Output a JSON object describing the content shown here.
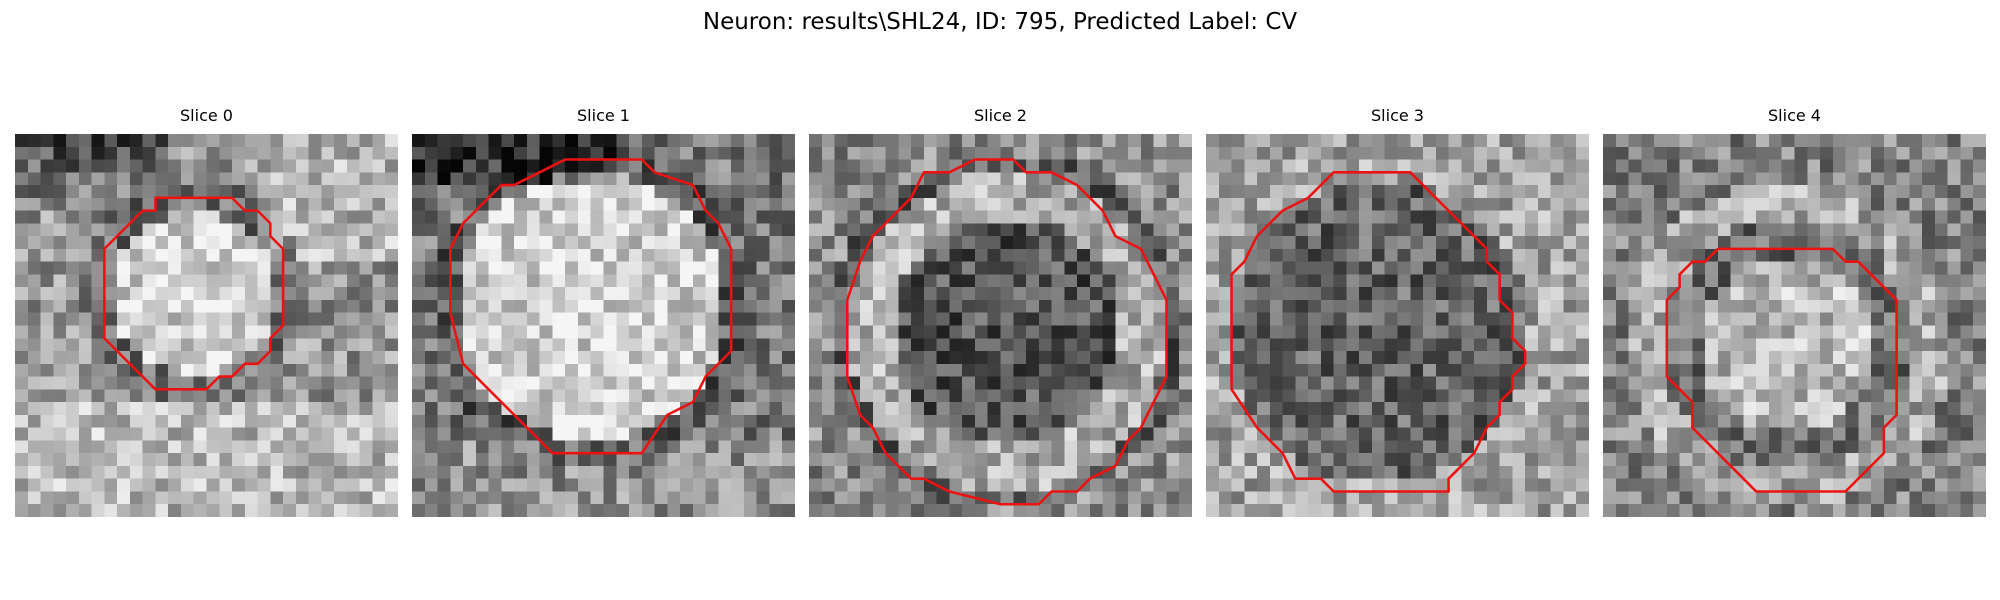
{
  "figure": {
    "title": "Neuron: results\\SHL24, ID: 795, Predicted Label: CV"
  },
  "panels": [
    {
      "title": "Slice 0"
    },
    {
      "title": "Slice 1"
    },
    {
      "title": "Slice 2"
    },
    {
      "title": "Slice 3"
    },
    {
      "title": "Slice 4"
    }
  ],
  "colors": {
    "background": "#ffffff",
    "contour": "#ee1111",
    "colormap": "grayscale"
  }
}
